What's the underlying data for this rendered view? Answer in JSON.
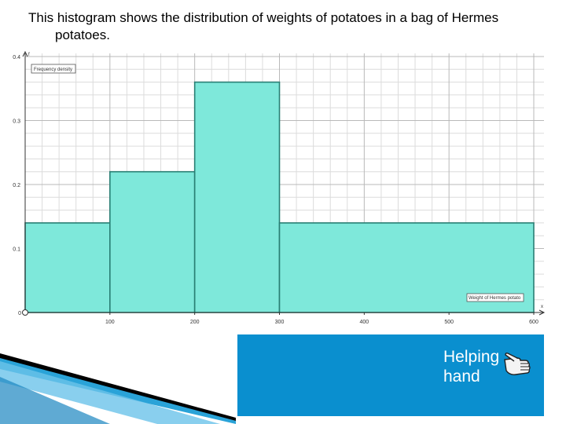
{
  "intro": {
    "line1": "This histogram shows the distribution of weights of potatoes in a bag of Hermes",
    "line2": "potatoes."
  },
  "helper": {
    "text_line1": "Helping",
    "text_line2": "hand",
    "icon": "pointing-hand-icon",
    "background_color": "#0a8fcf"
  },
  "chart_data": {
    "type": "bar",
    "histogram": true,
    "bins": [
      {
        "from": 0,
        "to": 100,
        "density": 0.14
      },
      {
        "from": 100,
        "to": 200,
        "density": 0.22
      },
      {
        "from": 200,
        "to": 300,
        "density": 0.36
      },
      {
        "from": 300,
        "to": 600,
        "density": 0.14
      }
    ],
    "xlim": [
      0,
      600
    ],
    "ylim": [
      0,
      0.4
    ],
    "x_ticks": [
      "100",
      "200",
      "300",
      "400",
      "500",
      "600"
    ],
    "y_ticks": [
      "0.1",
      "0.2",
      "0.3",
      "0.4"
    ],
    "x_tick_values": [
      100,
      200,
      300,
      400,
      500,
      600
    ],
    "y_tick_values": [
      0.1,
      0.2,
      0.3,
      0.4
    ],
    "origin_label": "0",
    "xlabel": "Weight of Hermes potato",
    "ylabel": "Frequency density",
    "x_axis_letter": "x",
    "y_axis_letter": "f",
    "grid": true,
    "bar_fill": "#7ee8da",
    "bar_edge": "#2a7f74"
  }
}
